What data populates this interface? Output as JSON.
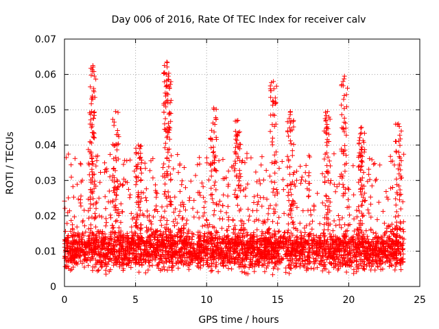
{
  "chart_data": {
    "type": "scatter",
    "title": "Day 006 of 2016, Rate Of TEC Index for receiver calv",
    "xlabel": "GPS time / hours",
    "ylabel": "ROTI / TECUs",
    "xlim": [
      0,
      25
    ],
    "ylim": [
      0,
      0.07
    ],
    "xticks": [
      0,
      5,
      10,
      15,
      20,
      25
    ],
    "xtick_labels": [
      "0",
      "5",
      "10",
      "15",
      "20",
      "25"
    ],
    "yticks": [
      0,
      0.01,
      0.02,
      0.03,
      0.04,
      0.05,
      0.06,
      0.07
    ],
    "ytick_labels": [
      "0",
      "0.01",
      "0.02",
      "0.03",
      "0.04",
      "0.05",
      "0.06",
      "0.07"
    ],
    "grid": true,
    "marker": "+",
    "marker_color": "#ff0000",
    "x_range_data": [
      0.0,
      23.9
    ],
    "baseline_band": [
      0.004,
      0.016
    ],
    "peaks": [
      {
        "x": 1.9,
        "y": 0.0495
      },
      {
        "x": 2.0,
        "y": 0.0625
      },
      {
        "x": 3.6,
        "y": 0.0495
      },
      {
        "x": 5.2,
        "y": 0.04
      },
      {
        "x": 7.2,
        "y": 0.0635
      },
      {
        "x": 7.3,
        "y": 0.0595
      },
      {
        "x": 10.5,
        "y": 0.0505
      },
      {
        "x": 12.2,
        "y": 0.047
      },
      {
        "x": 14.7,
        "y": 0.058
      },
      {
        "x": 15.9,
        "y": 0.0495
      },
      {
        "x": 18.5,
        "y": 0.0495
      },
      {
        "x": 19.7,
        "y": 0.0595
      },
      {
        "x": 20.9,
        "y": 0.045
      },
      {
        "x": 23.5,
        "y": 0.046
      }
    ]
  }
}
